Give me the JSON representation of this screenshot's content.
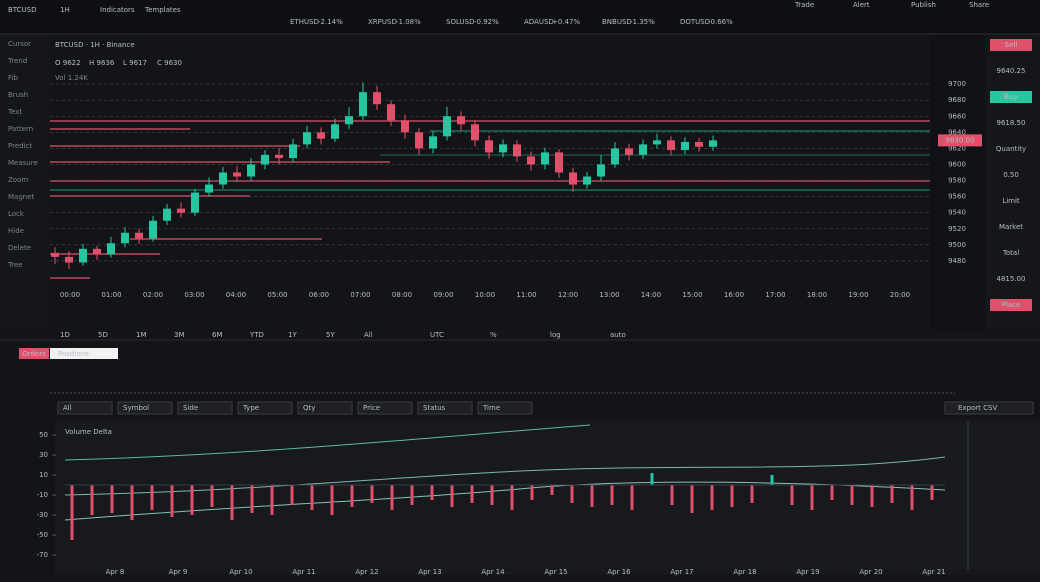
{
  "topbar": {
    "symbol": "BTCUSD",
    "interval": "1H",
    "menu": [
      "Indicators",
      "Templates"
    ],
    "tickers": [
      {
        "name": "ETHUSD",
        "change": "-2.14%"
      },
      {
        "name": "XRPUSD",
        "change": "-1.08%"
      },
      {
        "name": "SOLUSD",
        "change": "-0.92%"
      },
      {
        "name": "ADAUSD",
        "change": "+0.47%"
      },
      {
        "name": "BNBUSD",
        "change": "-1.35%"
      },
      {
        "name": "DOTUSD",
        "change": "-0.66%"
      }
    ],
    "right": [
      "Trade",
      "Alert",
      "Publish",
      "Share"
    ]
  },
  "toolbar": [
    "Cursor",
    "Trend",
    "Fib",
    "Brush",
    "Text",
    "Pattern",
    "Predict",
    "Measure",
    "Zoom",
    "Magnet",
    "Lock",
    "Hide",
    "Delete",
    "Tree"
  ],
  "main_chart": {
    "type": "candlestick",
    "title": "BTCUSD · 1H · Binance",
    "legend": [
      "O 9622",
      "H 9636",
      "L 9617",
      "C 9630"
    ],
    "volume_note": "Vol 1.24K",
    "up_color": "#26c6a0",
    "down_color": "#e0506a",
    "candles": [
      {
        "o": 9490,
        "h": 9497,
        "l": 9476,
        "c": 9485
      },
      {
        "o": 9485,
        "h": 9492,
        "l": 9470,
        "c": 9478
      },
      {
        "o": 9478,
        "h": 9501,
        "l": 9474,
        "c": 9495
      },
      {
        "o": 9495,
        "h": 9499,
        "l": 9481,
        "c": 9488
      },
      {
        "o": 9488,
        "h": 9510,
        "l": 9484,
        "c": 9502
      },
      {
        "o": 9502,
        "h": 9522,
        "l": 9497,
        "c": 9515
      },
      {
        "o": 9515,
        "h": 9520,
        "l": 9501,
        "c": 9508
      },
      {
        "o": 9508,
        "h": 9536,
        "l": 9504,
        "c": 9530
      },
      {
        "o": 9530,
        "h": 9551,
        "l": 9525,
        "c": 9545
      },
      {
        "o": 9545,
        "h": 9553,
        "l": 9534,
        "c": 9540
      },
      {
        "o": 9540,
        "h": 9570,
        "l": 9536,
        "c": 9565
      },
      {
        "o": 9565,
        "h": 9584,
        "l": 9560,
        "c": 9575
      },
      {
        "o": 9575,
        "h": 9597,
        "l": 9570,
        "c": 9590
      },
      {
        "o": 9590,
        "h": 9598,
        "l": 9578,
        "c": 9585
      },
      {
        "o": 9585,
        "h": 9608,
        "l": 9580,
        "c": 9600
      },
      {
        "o": 9600,
        "h": 9618,
        "l": 9594,
        "c": 9612
      },
      {
        "o": 9612,
        "h": 9620,
        "l": 9600,
        "c": 9608
      },
      {
        "o": 9608,
        "h": 9632,
        "l": 9603,
        "c": 9625
      },
      {
        "o": 9625,
        "h": 9648,
        "l": 9620,
        "c": 9640
      },
      {
        "o": 9640,
        "h": 9646,
        "l": 9625,
        "c": 9632
      },
      {
        "o": 9632,
        "h": 9657,
        "l": 9628,
        "c": 9650
      },
      {
        "o": 9650,
        "h": 9671,
        "l": 9644,
        "c": 9660
      },
      {
        "o": 9660,
        "h": 9702,
        "l": 9655,
        "c": 9690
      },
      {
        "o": 9690,
        "h": 9698,
        "l": 9668,
        "c": 9675
      },
      {
        "o": 9675,
        "h": 9680,
        "l": 9648,
        "c": 9655
      },
      {
        "o": 9655,
        "h": 9662,
        "l": 9632,
        "c": 9640
      },
      {
        "o": 9640,
        "h": 9645,
        "l": 9612,
        "c": 9620
      },
      {
        "o": 9620,
        "h": 9641,
        "l": 9614,
        "c": 9635
      },
      {
        "o": 9635,
        "h": 9672,
        "l": 9630,
        "c": 9660
      },
      {
        "o": 9660,
        "h": 9666,
        "l": 9642,
        "c": 9650
      },
      {
        "o": 9650,
        "h": 9655,
        "l": 9622,
        "c": 9630
      },
      {
        "o": 9630,
        "h": 9636,
        "l": 9607,
        "c": 9615
      },
      {
        "o": 9615,
        "h": 9631,
        "l": 9609,
        "c": 9625
      },
      {
        "o": 9625,
        "h": 9630,
        "l": 9603,
        "c": 9610
      },
      {
        "o": 9610,
        "h": 9616,
        "l": 9592,
        "c": 9600
      },
      {
        "o": 9600,
        "h": 9621,
        "l": 9594,
        "c": 9615
      },
      {
        "o": 9615,
        "h": 9619,
        "l": 9583,
        "c": 9590
      },
      {
        "o": 9590,
        "h": 9596,
        "l": 9566,
        "c": 9575
      },
      {
        "o": 9575,
        "h": 9591,
        "l": 9570,
        "c": 9585
      },
      {
        "o": 9585,
        "h": 9612,
        "l": 9580,
        "c": 9600
      },
      {
        "o": 9600,
        "h": 9628,
        "l": 9596,
        "c": 9620
      },
      {
        "o": 9620,
        "h": 9626,
        "l": 9605,
        "c": 9612
      },
      {
        "o": 9612,
        "h": 9631,
        "l": 9607,
        "c": 9625
      },
      {
        "o": 9625,
        "h": 9638,
        "l": 9620,
        "c": 9630
      },
      {
        "o": 9630,
        "h": 9635,
        "l": 9611,
        "c": 9618
      },
      {
        "o": 9618,
        "h": 9634,
        "l": 9613,
        "c": 9628
      },
      {
        "o": 9628,
        "h": 9633,
        "l": 9616,
        "c": 9622
      },
      {
        "o": 9622,
        "h": 9636,
        "l": 9617,
        "c": 9630
      }
    ],
    "ylim": [
      9450,
      9730
    ],
    "yticks": [
      9700,
      9680,
      9660,
      9640,
      9620,
      9600,
      9580,
      9560,
      9540,
      9520,
      9500,
      9480
    ],
    "grid": true,
    "last_price": {
      "value": 9630,
      "label": "9630.00"
    },
    "x_labels": [
      "00:00",
      "01:00",
      "02:00",
      "03:00",
      "04:00",
      "05:00",
      "06:00",
      "07:00",
      "08:00",
      "09:00",
      "10:00",
      "11:00",
      "12:00",
      "13:00",
      "14:00",
      "15:00",
      "16:00",
      "17:00",
      "18:00",
      "19:00",
      "20:00"
    ]
  },
  "order_panel": [
    "Sell",
    "9640.25",
    "Buy",
    "9618.50",
    "Quantity",
    "0.50",
    "Limit",
    "Market",
    "Total",
    "4815.00",
    "Place"
  ],
  "ranges": [
    "1D",
    "5D",
    "1M",
    "3M",
    "6M",
    "YTD",
    "1Y",
    "5Y",
    "All"
  ],
  "status": [
    "UTC",
    "%",
    "log",
    "auto"
  ],
  "bottom_tabs": [
    "Orders",
    "Positions"
  ],
  "filters": [
    "All",
    "Symbol",
    "Side",
    "Type",
    "Qty",
    "Price",
    "Status",
    "Time"
  ],
  "export": "Export CSV",
  "volume_chart": {
    "type": "bar",
    "title": "Volume Delta",
    "up_color": "#26c6a0",
    "down_color": "#e0506a",
    "values": [
      -55,
      -30,
      -28,
      -35,
      -25,
      -32,
      -30,
      -22,
      -35,
      -28,
      -30,
      -20,
      -25,
      -30,
      -22,
      -18,
      -25,
      -20,
      -15,
      -22,
      -18,
      -20,
      -25,
      -15,
      -10,
      -18,
      -22,
      -20,
      -25,
      12,
      -20,
      -28,
      -25,
      -22,
      -18,
      10,
      -20,
      -25,
      -15,
      -20,
      -22,
      -18,
      -25,
      -15
    ],
    "ylim": [
      -80,
      60
    ],
    "yticks": [
      50,
      30,
      10,
      -10,
      -30,
      -50,
      -70
    ],
    "x_labels": [
      "Apr 8",
      "Apr 9",
      "Apr 10",
      "Apr 11",
      "Apr 12",
      "Apr 13",
      "Apr 14",
      "Apr 15",
      "Apr 16",
      "Apr 17",
      "Apr 18",
      "Apr 19",
      "Apr 20",
      "Apr 21"
    ]
  }
}
